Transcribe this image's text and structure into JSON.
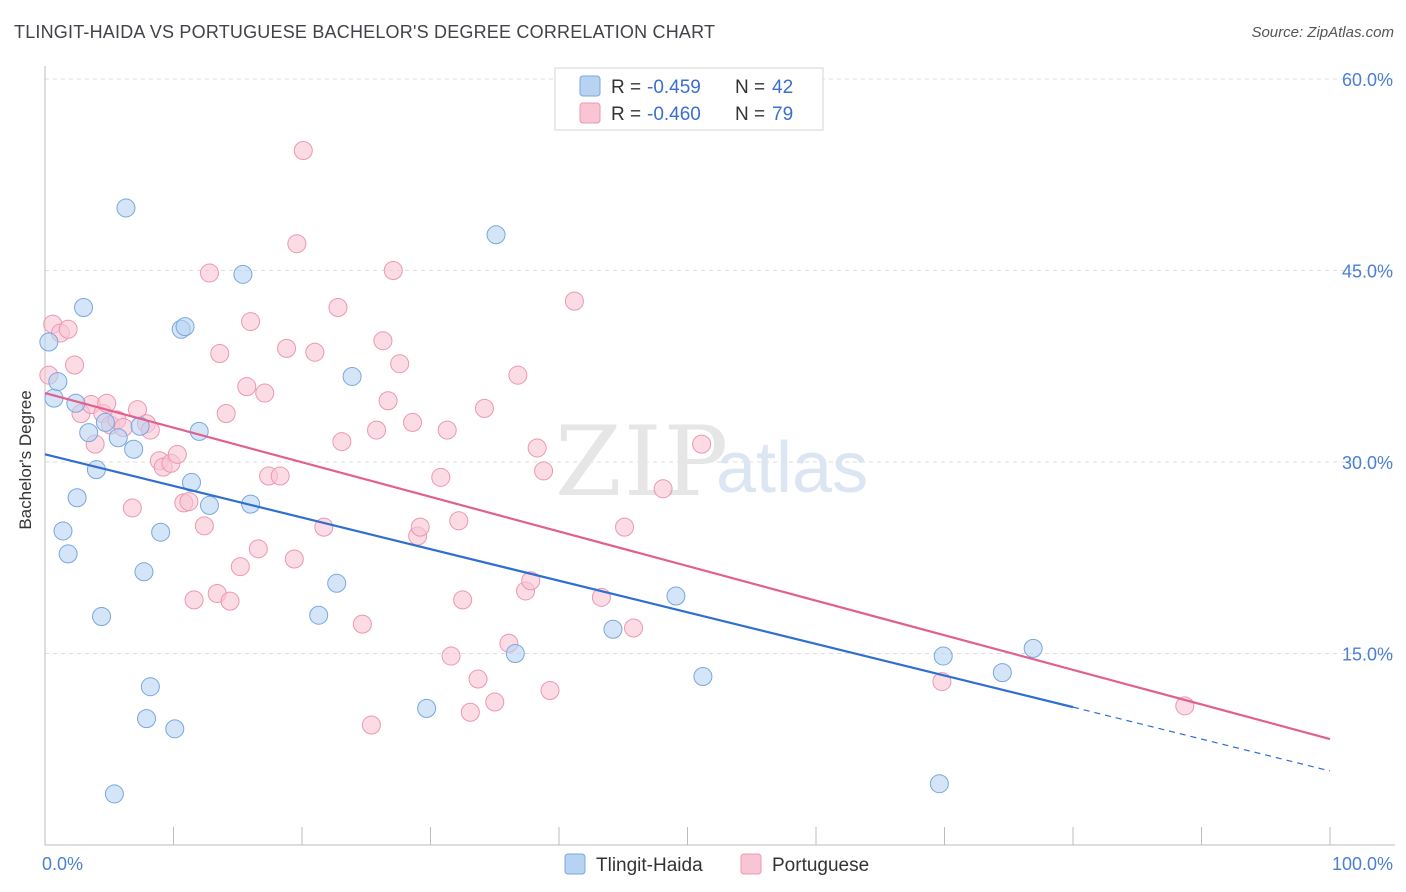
{
  "title": "TLINGIT-HAIDA VS PORTUGUESE BACHELOR'S DEGREE CORRELATION CHART",
  "source": "Source: ZipAtlas.com",
  "watermark": {
    "zip": "ZIP",
    "atlas": "atlas"
  },
  "legend": {
    "rows": [
      {
        "r_label": "R =",
        "r_value": "-0.459",
        "n_label": "N =",
        "n_value": "42"
      },
      {
        "r_label": "R =",
        "r_value": "-0.460",
        "n_label": "N =",
        "n_value": "79"
      }
    ]
  },
  "colors": {
    "tlingit_fill": "#b8d3f2",
    "tlingit_stroke": "#7aa6df",
    "tlingit_line": "#2f6fd0",
    "portuguese_fill": "#f9c4d3",
    "portuguese_stroke": "#ec97b1",
    "portuguese_line": "#e0608e",
    "grid": "#dddddd",
    "tick_text": "#4a7fd4"
  },
  "chart_data": {
    "type": "scatter",
    "title": "TLINGIT-HAIDA VS PORTUGUESE BACHELOR'S DEGREE CORRELATION CHART",
    "xlabel": "",
    "ylabel": "Bachelor's Degree",
    "xlim": [
      0,
      100
    ],
    "ylim": [
      0,
      60
    ],
    "x_tick_labels": [
      "0.0%",
      "100.0%"
    ],
    "y_ticks": [
      15,
      30,
      45,
      60
    ],
    "y_tick_labels": [
      "15.0%",
      "30.0%",
      "45.0%",
      "60.0%"
    ],
    "grid": true,
    "legend_position": "top-center",
    "series": [
      {
        "name": "Tlingit-Haida",
        "r": -0.459,
        "n": 42,
        "trend": {
          "x": [
            0,
            80
          ],
          "y": [
            30.6,
            10.8
          ]
        },
        "trend_dashed": {
          "x": [
            80,
            100
          ],
          "y": [
            10.8,
            5.8
          ]
        },
        "points": [
          [
            0.3,
            39.4
          ],
          [
            0.7,
            35.0
          ],
          [
            1.0,
            36.3
          ],
          [
            1.4,
            24.6
          ],
          [
            1.8,
            22.8
          ],
          [
            2.4,
            34.6
          ],
          [
            2.5,
            27.2
          ],
          [
            3.0,
            42.1
          ],
          [
            3.4,
            32.3
          ],
          [
            4.0,
            29.4
          ],
          [
            4.4,
            17.9
          ],
          [
            4.7,
            33.1
          ],
          [
            5.4,
            4.0
          ],
          [
            5.7,
            31.9
          ],
          [
            6.3,
            49.9
          ],
          [
            6.9,
            31.0
          ],
          [
            7.4,
            32.8
          ],
          [
            7.7,
            21.4
          ],
          [
            7.9,
            9.9
          ],
          [
            8.2,
            12.4
          ],
          [
            9.0,
            24.5
          ],
          [
            10.1,
            9.1
          ],
          [
            10.6,
            40.4
          ],
          [
            10.9,
            40.6
          ],
          [
            11.4,
            28.4
          ],
          [
            12.0,
            32.4
          ],
          [
            12.8,
            26.6
          ],
          [
            15.4,
            44.7
          ],
          [
            16.0,
            26.7
          ],
          [
            21.3,
            18.0
          ],
          [
            22.7,
            20.5
          ],
          [
            23.9,
            36.7
          ],
          [
            29.7,
            10.7
          ],
          [
            35.1,
            47.8
          ],
          [
            36.6,
            15.0
          ],
          [
            44.2,
            16.9
          ],
          [
            49.1,
            19.5
          ],
          [
            51.2,
            13.2
          ],
          [
            69.6,
            4.8
          ],
          [
            69.9,
            14.8
          ],
          [
            74.5,
            13.5
          ],
          [
            76.9,
            15.4
          ]
        ]
      },
      {
        "name": "Portuguese",
        "r": -0.46,
        "n": 79,
        "trend": {
          "x": [
            0,
            100
          ],
          "y": [
            35.4,
            8.3
          ]
        },
        "points": [
          [
            0.3,
            36.8
          ],
          [
            0.6,
            40.8
          ],
          [
            1.2,
            40.1
          ],
          [
            1.8,
            40.4
          ],
          [
            2.3,
            37.6
          ],
          [
            2.8,
            33.8
          ],
          [
            3.6,
            34.5
          ],
          [
            3.9,
            31.4
          ],
          [
            4.5,
            33.8
          ],
          [
            4.8,
            34.6
          ],
          [
            5.1,
            32.9
          ],
          [
            5.6,
            33.3
          ],
          [
            6.1,
            32.7
          ],
          [
            6.8,
            26.4
          ],
          [
            7.2,
            34.1
          ],
          [
            7.9,
            33.0
          ],
          [
            8.2,
            32.5
          ],
          [
            8.9,
            30.1
          ],
          [
            9.2,
            29.6
          ],
          [
            9.8,
            29.9
          ],
          [
            10.3,
            30.6
          ],
          [
            10.8,
            26.8
          ],
          [
            11.2,
            26.9
          ],
          [
            11.6,
            19.2
          ],
          [
            12.4,
            25.0
          ],
          [
            12.8,
            44.8
          ],
          [
            13.4,
            19.7
          ],
          [
            13.6,
            38.5
          ],
          [
            14.1,
            33.8
          ],
          [
            14.4,
            19.1
          ],
          [
            15.2,
            21.8
          ],
          [
            15.7,
            35.9
          ],
          [
            16.0,
            41.0
          ],
          [
            16.6,
            23.2
          ],
          [
            17.1,
            35.4
          ],
          [
            17.4,
            28.9
          ],
          [
            18.3,
            28.9
          ],
          [
            18.8,
            38.9
          ],
          [
            19.4,
            22.4
          ],
          [
            19.6,
            47.1
          ],
          [
            20.1,
            54.4
          ],
          [
            21.0,
            38.6
          ],
          [
            21.7,
            24.9
          ],
          [
            22.8,
            42.1
          ],
          [
            23.1,
            31.6
          ],
          [
            24.7,
            17.3
          ],
          [
            25.4,
            9.4
          ],
          [
            25.8,
            32.5
          ],
          [
            26.3,
            39.5
          ],
          [
            26.7,
            34.8
          ],
          [
            27.1,
            45.0
          ],
          [
            27.6,
            37.7
          ],
          [
            28.6,
            33.1
          ],
          [
            29.0,
            24.2
          ],
          [
            29.2,
            24.9
          ],
          [
            30.8,
            28.8
          ],
          [
            31.3,
            32.5
          ],
          [
            31.6,
            14.8
          ],
          [
            32.2,
            25.4
          ],
          [
            32.5,
            19.2
          ],
          [
            33.1,
            10.4
          ],
          [
            33.7,
            13.0
          ],
          [
            34.2,
            34.2
          ],
          [
            35.0,
            11.2
          ],
          [
            36.1,
            15.8
          ],
          [
            36.8,
            36.8
          ],
          [
            37.4,
            19.9
          ],
          [
            37.8,
            20.7
          ],
          [
            38.3,
            31.1
          ],
          [
            38.8,
            29.3
          ],
          [
            39.3,
            12.1
          ],
          [
            41.2,
            42.6
          ],
          [
            43.3,
            19.4
          ],
          [
            45.1,
            24.9
          ],
          [
            45.8,
            17.0
          ],
          [
            48.1,
            27.9
          ],
          [
            51.1,
            31.4
          ],
          [
            69.8,
            12.8
          ],
          [
            88.7,
            10.9
          ]
        ]
      }
    ]
  }
}
